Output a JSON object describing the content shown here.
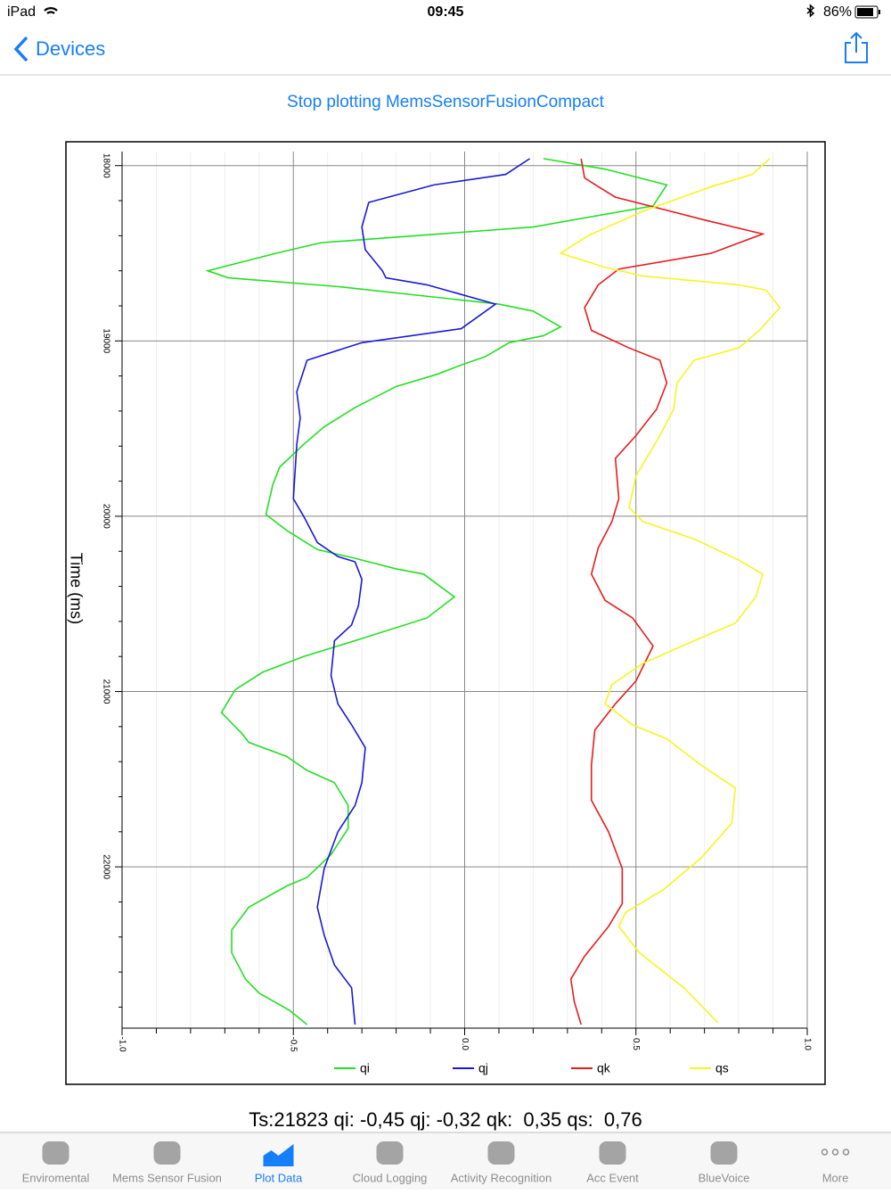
{
  "status_bar": {
    "device": "iPad",
    "time": "09:45",
    "battery": "86%"
  },
  "nav": {
    "back": "Devices"
  },
  "action": "Stop plotting MemsSensorFusionCompact",
  "chart_data": {
    "type": "line",
    "ylabel": "Time (ms)",
    "xlim": [
      -1,
      1
    ],
    "xticks": [
      {
        "value": -1,
        "label": "-1.0"
      },
      -0.5,
      {
        "value": 0,
        "label": "0.0"
      },
      0.5,
      {
        "value": 1,
        "label": "1.0"
      }
    ],
    "xminor": [
      -0.9,
      -0.8,
      -0.7,
      -0.6,
      -0.4,
      -0.3,
      -0.2,
      -0.1,
      0.1,
      0.2,
      0.3,
      0.4,
      0.6,
      0.7,
      0.8,
      0.9
    ],
    "ylim": [
      17920,
      22920
    ],
    "yticks": [
      18000,
      19000,
      20000,
      21000,
      22000
    ],
    "yminor": [
      18200,
      18400,
      18600,
      18800,
      19200,
      19400,
      19600,
      19800,
      20200,
      20400,
      20600,
      20800,
      21200,
      21400,
      21600,
      21800,
      22200,
      22400,
      22600,
      22800
    ],
    "grid": true,
    "series": [
      {
        "name": "qi",
        "color": "#22e022",
        "t": [
          17960,
          18020,
          18110,
          18230,
          18350,
          18440,
          18500,
          18600,
          18640,
          18690,
          18790,
          18830,
          18920,
          18970,
          19010,
          19090,
          19130,
          19190,
          19260,
          19380,
          19490,
          19590,
          19720,
          19820,
          19990,
          20080,
          20190,
          20240,
          20300,
          20330,
          20460,
          20580,
          20710,
          20800,
          20890,
          20990,
          21120,
          21240,
          21290,
          21370,
          21450,
          21520,
          21650,
          21780,
          21930,
          22060,
          22110,
          22230,
          22360,
          22490,
          22640,
          22720,
          22820,
          22900
        ],
        "values": [
          0.23,
          0.41,
          0.59,
          0.55,
          0.2,
          -0.42,
          -0.55,
          -0.75,
          -0.69,
          -0.37,
          0.1,
          0.2,
          0.28,
          0.23,
          0.13,
          0.06,
          0,
          -0.08,
          -0.2,
          -0.32,
          -0.41,
          -0.47,
          -0.54,
          -0.56,
          -0.58,
          -0.52,
          -0.43,
          -0.32,
          -0.2,
          -0.12,
          -0.03,
          -0.11,
          -0.32,
          -0.47,
          -0.59,
          -0.67,
          -0.71,
          -0.65,
          -0.63,
          -0.52,
          -0.46,
          -0.38,
          -0.34,
          -0.34,
          -0.39,
          -0.46,
          -0.52,
          -0.63,
          -0.68,
          -0.68,
          -0.64,
          -0.6,
          -0.51,
          -0.46
        ]
      },
      {
        "name": "qj",
        "color": "#1a1ad6",
        "t": [
          17960,
          18050,
          18110,
          18210,
          18350,
          18480,
          18600,
          18640,
          18680,
          18790,
          18930,
          19010,
          19110,
          19290,
          19440,
          19590,
          19900,
          20000,
          20150,
          20230,
          20260,
          20360,
          20510,
          20620,
          20710,
          20910,
          21070,
          21190,
          21320,
          21520,
          21650,
          21800,
          22010,
          22230,
          22390,
          22560,
          22690,
          22900
        ],
        "values": [
          0.19,
          0.12,
          -0.09,
          -0.28,
          -0.3,
          -0.29,
          -0.24,
          -0.23,
          -0.11,
          0.09,
          -0.01,
          -0.3,
          -0.46,
          -0.49,
          -0.48,
          -0.49,
          -0.5,
          -0.47,
          -0.43,
          -0.37,
          -0.32,
          -0.3,
          -0.31,
          -0.33,
          -0.38,
          -0.39,
          -0.37,
          -0.33,
          -0.29,
          -0.3,
          -0.32,
          -0.37,
          -0.41,
          -0.43,
          -0.41,
          -0.38,
          -0.33,
          -0.32
        ]
      },
      {
        "name": "qk",
        "color": "#e81c1c",
        "t": [
          17960,
          18070,
          18120,
          18180,
          18310,
          18390,
          18500,
          18590,
          18680,
          18810,
          18940,
          19040,
          19110,
          19240,
          19390,
          19540,
          19670,
          19900,
          20030,
          20180,
          20330,
          20480,
          20580,
          20740,
          20940,
          21070,
          21220,
          21420,
          21620,
          21800,
          22010,
          22210,
          22340,
          22510,
          22640,
          22770,
          22900
        ],
        "values": [
          0.34,
          0.35,
          0.39,
          0.44,
          0.7,
          0.87,
          0.72,
          0.45,
          0.39,
          0.35,
          0.37,
          0.48,
          0.57,
          0.59,
          0.56,
          0.5,
          0.44,
          0.45,
          0.43,
          0.39,
          0.37,
          0.41,
          0.49,
          0.55,
          0.5,
          0.44,
          0.38,
          0.37,
          0.37,
          0.42,
          0.46,
          0.46,
          0.42,
          0.35,
          0.31,
          0.32,
          0.34
        ]
      },
      {
        "name": "qs",
        "color": "#f5f522",
        "t": [
          17960,
          18050,
          18120,
          18260,
          18400,
          18500,
          18580,
          18630,
          18680,
          18710,
          18810,
          18940,
          19040,
          19110,
          19240,
          19390,
          19540,
          19770,
          19950,
          20030,
          20130,
          20250,
          20330,
          20460,
          20610,
          20710,
          20840,
          20960,
          21070,
          21190,
          21270,
          21420,
          21550,
          21750,
          21950,
          22130,
          22260,
          22340,
          22490,
          22690,
          22890
        ],
        "values": [
          0.89,
          0.84,
          0.72,
          0.52,
          0.36,
          0.28,
          0.41,
          0.52,
          0.8,
          0.88,
          0.92,
          0.86,
          0.8,
          0.67,
          0.62,
          0.61,
          0.57,
          0.5,
          0.48,
          0.52,
          0.67,
          0.8,
          0.87,
          0.85,
          0.79,
          0.67,
          0.52,
          0.43,
          0.41,
          0.49,
          0.59,
          0.69,
          0.79,
          0.78,
          0.69,
          0.58,
          0.47,
          0.45,
          0.51,
          0.64,
          0.74
        ]
      }
    ]
  },
  "readout": "Ts:21823 qi: -0,45 qj: -0,32 qk:  0,35 qs:  0,76",
  "tabs": [
    "Enviromental",
    "Mems Sensor Fusion",
    "Plot Data",
    "Cloud Logging",
    "Activity Recognition",
    "Acc Event",
    "BlueVoice",
    "More"
  ]
}
